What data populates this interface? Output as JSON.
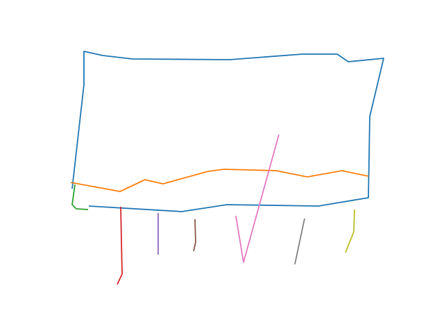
{
  "strokes": [
    {
      "name": "stroke-blue",
      "color": "#1f77b4"
    },
    {
      "name": "stroke-orange",
      "color": "#ff7f0e"
    },
    {
      "name": "stroke-green",
      "color": "#2ca02c"
    },
    {
      "name": "stroke-red",
      "color": "#d62728"
    },
    {
      "name": "stroke-purple",
      "color": "#9467bd"
    },
    {
      "name": "stroke-brown",
      "color": "#8c564b"
    },
    {
      "name": "stroke-pink",
      "color": "#e377c2"
    },
    {
      "name": "stroke-gray",
      "color": "#7f7f7f"
    },
    {
      "name": "stroke-olive",
      "color": "#bcbd22"
    }
  ]
}
